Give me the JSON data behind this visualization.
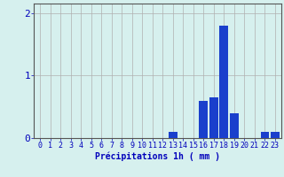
{
  "hours": [
    0,
    1,
    2,
    3,
    4,
    5,
    6,
    7,
    8,
    9,
    10,
    11,
    12,
    13,
    14,
    15,
    16,
    17,
    18,
    19,
    20,
    21,
    22,
    23
  ],
  "values": [
    0,
    0,
    0,
    0,
    0,
    0,
    0,
    0,
    0,
    0,
    0,
    0,
    0,
    0.1,
    0.0,
    0.0,
    0.6,
    0.65,
    1.8,
    0.4,
    0,
    0,
    0.1,
    0.1
  ],
  "bar_color": "#1a3fcc",
  "background_color": "#d6f0ee",
  "grid_color": "#b0b0b0",
  "axis_color": "#555555",
  "xlabel": "Précipitations 1h ( mm )",
  "xlabel_color": "#0000bb",
  "xlabel_fontsize": 7,
  "tick_color": "#0000bb",
  "tick_fontsize": 6,
  "ylim": [
    0,
    2.15
  ],
  "yticks": [
    0,
    1,
    2
  ],
  "xlim": [
    -0.6,
    23.6
  ]
}
